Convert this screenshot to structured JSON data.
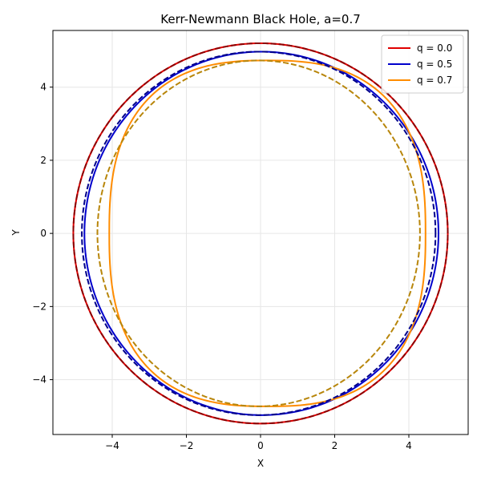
{
  "chart_data": {
    "type": "line",
    "title": "Kerr-Newmann Black Hole, a=0.7",
    "xlabel": "X",
    "ylabel": "Y",
    "xlim": [
      -5.6,
      5.6
    ],
    "ylim": [
      -5.5,
      5.55
    ],
    "xticks": [
      -4,
      -2,
      0,
      2,
      4
    ],
    "yticks": [
      -4,
      -2,
      0,
      2,
      4
    ],
    "grid": true,
    "legend_position": "upper-right",
    "series": [
      {
        "name": "q = 0.0",
        "color": "#e00000",
        "style": "solid",
        "shape": {
          "xmin": -5.05,
          "xmax": 5.05,
          "ymax": 5.2,
          "ymin": -5.2,
          "exponent": 2.0
        }
      },
      {
        "name": "q = 0.5",
        "color": "#0000cc",
        "style": "solid",
        "shape": {
          "xmin": -4.75,
          "xmax": 4.8,
          "ymax": 4.97,
          "ymin": -4.97,
          "exponent": 2.0
        }
      },
      {
        "name": "q = 0.7",
        "color": "#ff8c00",
        "style": "solid",
        "shape": {
          "xmin": -4.08,
          "xmax": 4.45,
          "ymax": 4.73,
          "ymin": -4.73,
          "exponent": 2.6
        }
      },
      {
        "color": "#8b0000",
        "style": "dashed",
        "shape": {
          "xmin": -5.05,
          "xmax": 5.05,
          "ymax": 5.2,
          "ymin": -5.2,
          "exponent": 2.0
        }
      },
      {
        "color": "#00008b",
        "style": "dashed",
        "shape": {
          "xmin": -4.82,
          "xmax": 4.72,
          "ymax": 4.97,
          "ymin": -4.97,
          "exponent": 2.0
        }
      },
      {
        "color": "#b8860b",
        "style": "dashed",
        "shape": {
          "xmin": -4.4,
          "xmax": 4.3,
          "ymax": 4.73,
          "ymin": -4.73,
          "exponent": 2.0
        }
      }
    ]
  }
}
